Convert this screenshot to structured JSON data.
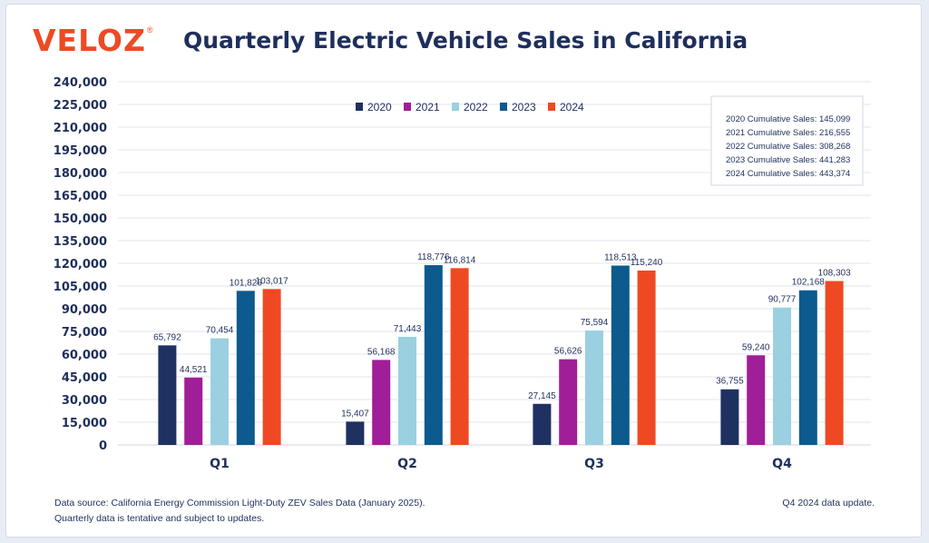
{
  "logo": {
    "text": "VELOZ",
    "registered": "®"
  },
  "header": {
    "title": "Quarterly Electric Vehicle Sales in California"
  },
  "chart_data": {
    "type": "bar",
    "title": "Quarterly Electric Vehicle Sales in California",
    "xlabel": "",
    "ylabel": "",
    "categories": [
      "Q1",
      "Q2",
      "Q3",
      "Q4"
    ],
    "ylim": [
      0,
      240000
    ],
    "ytick_step": 15000,
    "yticks": [
      "0",
      "15,000",
      "30,000",
      "45,000",
      "60,000",
      "75,000",
      "90,000",
      "105,000",
      "120,000",
      "135,000",
      "150,000",
      "165,000",
      "180,000",
      "195,000",
      "210,000",
      "225,000",
      "240,000"
    ],
    "grid": true,
    "legend_position": "top",
    "series": [
      {
        "name": "2020",
        "color": "#1f3160",
        "values": [
          65792,
          15407,
          27145,
          36755
        ],
        "labels": [
          "65,792",
          "15,407",
          "27,145",
          "36,755"
        ]
      },
      {
        "name": "2021",
        "color": "#a01e97",
        "values": [
          44521,
          56168,
          56626,
          59240
        ],
        "labels": [
          "44,521",
          "56,168",
          "56,626",
          "59,240"
        ]
      },
      {
        "name": "2022",
        "color": "#9bd0e0",
        "values": [
          70454,
          71443,
          75594,
          90777
        ],
        "labels": [
          "70,454",
          "71,443",
          "75,594",
          "90,777"
        ]
      },
      {
        "name": "2023",
        "color": "#0c5a8e",
        "values": [
          101826,
          118776,
          118513,
          102168
        ],
        "labels": [
          "101,826",
          "118,776",
          "118,513",
          "102,168"
        ]
      },
      {
        "name": "2024",
        "color": "#ef4923",
        "values": [
          103017,
          116814,
          115240,
          108303
        ],
        "labels": [
          "103,017",
          "116,814",
          "115,240",
          "108,303"
        ]
      }
    ],
    "annotation_box": [
      "2020 Cumulative Sales: 145,099",
      "2021 Cumulative Sales: 216,555",
      "2022 Cumulative Sales: 308,268",
      "2023 Cumulative Sales: 441,283",
      "2024 Cumulative Sales: 443,374"
    ]
  },
  "footer": {
    "source_line1": "Data source: California Energy Commission Light-Duty ZEV Sales Data (January 2025).",
    "source_line2": "Quarterly data is tentative and subject to updates.",
    "update_note": "Q4 2024 data update."
  }
}
